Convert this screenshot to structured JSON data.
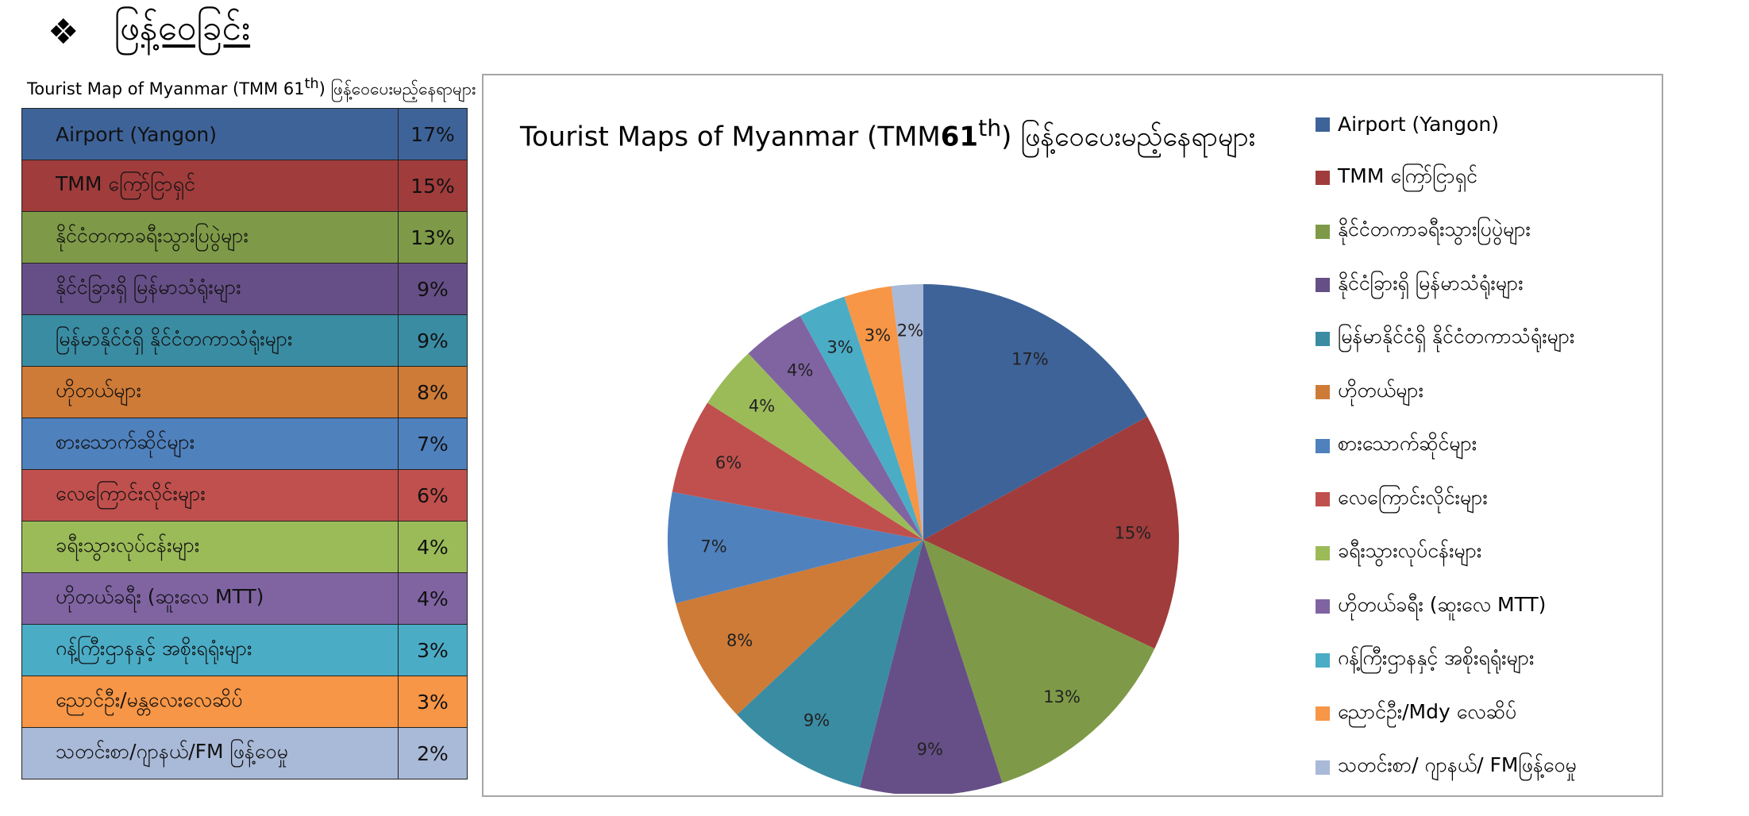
{
  "header": {
    "bullet_icon": "diamond-cluster-icon",
    "bullet_glyph": "❖",
    "title": "ဖြန့်ဝေခြင်း"
  },
  "table": {
    "caption": "Tourist Map of Myanmar (TMM 61th) ဖြန့်ဝေပေးမည့်နေရာများ",
    "rows": [
      {
        "label": "Airport (Yangon)",
        "value": "17%",
        "color": "#3E6399"
      },
      {
        "label": "TMM ကြော်ငြာရှင်",
        "value": "15%",
        "color": "#A03C3C"
      },
      {
        "label": "နိုင်ငံတကာခရီးသွားပြပွဲများ",
        "value": "13%",
        "color": "#7E9A48"
      },
      {
        "label": "နိုင်ငံခြားရှိ မြန်မာသံရုံးများ",
        "value": "9%",
        "color": "#664F86"
      },
      {
        "label": "မြန်မာနိုင်ငံရှိ နိုင်ငံတကာသံရုံးများ",
        "value": "9%",
        "color": "#3A8CA3"
      },
      {
        "label": "ဟိုတယ်များ",
        "value": "8%",
        "color": "#CE7B37"
      },
      {
        "label": "စားသောက်ဆိုင်များ",
        "value": "7%",
        "color": "#4F81BD"
      },
      {
        "label": "လေကြောင်းလိုင်းများ",
        "value": "6%",
        "color": "#C0504D"
      },
      {
        "label": "ခရီးသွားလုပ်ငန်းများ",
        "value": "4%",
        "color": "#9BBB59"
      },
      {
        "label": "ဟိုတယ်ခရီး (ဆူးလေ MTT)",
        "value": "4%",
        "color": "#8064A2"
      },
      {
        "label": "ဂန့်ကြီးဌာနနှင့် အစိုးရရုံးများ",
        "value": "3%",
        "color": "#4BACC6"
      },
      {
        "label": "ညောင်ဦး/မန္တလေးလေဆိပ်",
        "value": "3%",
        "color": "#F79646"
      },
      {
        "label": "သတင်းစာ/ဂျာနယ်/FM ဖြန့်ဝေမှု",
        "value": "2%",
        "color": "#A9B9D8"
      }
    ]
  },
  "chart_data": {
    "type": "pie",
    "title": "Tourist  Maps of Myanmar (TMM61th) ဖြန့်ဝေပေးမည့်နေရာများ",
    "title_parts": {
      "pre": "Tourist  Maps of Myanmar (TMM",
      "num": "61",
      "sup": "th",
      "post": ") ဖြန့်ဝေပေးမည့်နေရာများ"
    },
    "legend_position": "right",
    "categories": [
      "Airport (Yangon)",
      "TMM ကြော်ငြာရှင်",
      "နိုင်ငံတကာခရီးသွားပြပွဲများ",
      "နိုင်ငံခြားရှိ မြန်မာသံရုံးများ",
      "မြန်မာနိုင်ငံရှိ နိုင်ငံတကာသံရုံးများ",
      "ဟိုတယ်များ",
      "စားသောက်ဆိုင်များ",
      "လေကြောင်းလိုင်းများ",
      "ခရီးသွားလုပ်ငန်းများ",
      "ဟိုတယ်ခရီး (ဆူးလေ MTT)",
      "ဂန့်ကြီးဌာနနှင့် အစိုးရရုံးများ",
      "ညောင်ဦး/Mdy လေဆိပ်",
      "သတင်းစာ/ ဂျာနယ်/ FMဖြန့်ဝေမှု"
    ],
    "values": [
      17,
      15,
      13,
      9,
      9,
      8,
      7,
      6,
      4,
      4,
      3,
      3,
      2
    ],
    "labels": [
      "17%",
      "15%",
      "13%",
      "9%",
      "9%",
      "8%",
      "7%",
      "6%",
      "4%",
      "4%",
      "3%",
      "3%",
      "2%"
    ],
    "colors": [
      "#3E6399",
      "#A03C3C",
      "#7E9A48",
      "#664F86",
      "#3A8CA3",
      "#CE7B37",
      "#4F81BD",
      "#C0504D",
      "#9BBB59",
      "#8064A2",
      "#4BACC6",
      "#F79646",
      "#A9B9D8"
    ]
  }
}
